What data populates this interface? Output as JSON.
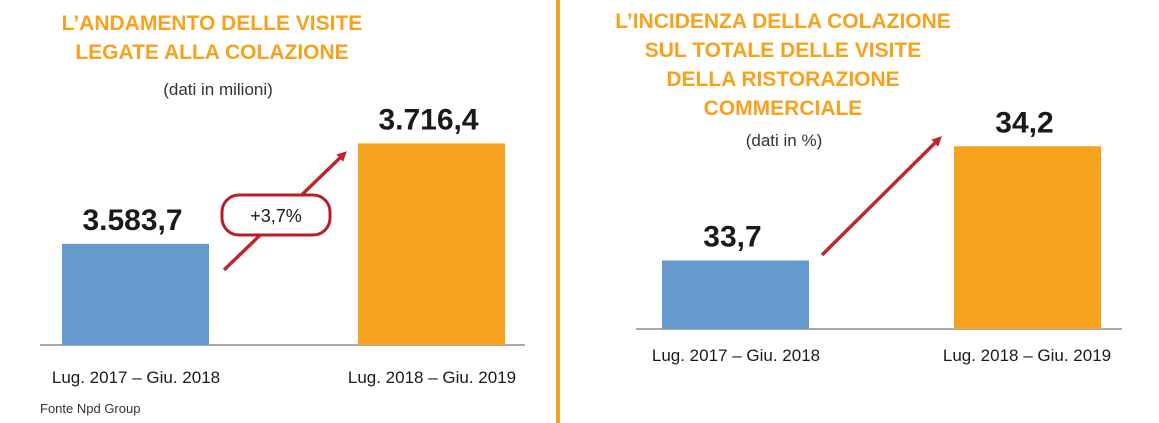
{
  "source": "Fonte Npd Group",
  "chart_data": [
    {
      "type": "bar",
      "title": [
        "L’ANDAMENTO DELLE VISITE",
        "LEGATE ALLA COLAZIONE"
      ],
      "subtitle": "(dati in milioni)",
      "categories": [
        "Lug. 2017 – Giu. 2018",
        "Lug. 2018 – Giu. 2019"
      ],
      "values": [
        3583.7,
        3716.4
      ],
      "value_labels": [
        "3.583,7",
        "3.716,4"
      ],
      "bar_colors": [
        "#6699cc",
        "#f7a21c"
      ],
      "ylim": [
        3450,
        3750
      ],
      "annotation": "+3,7%"
    },
    {
      "type": "bar",
      "title": [
        "L’INCIDENZA DELLA COLAZIONE",
        "SUL TOTALE DELLE VISITE",
        "DELLA RISTORAZIONE",
        "COMMERCIALE"
      ],
      "subtitle": "(dati in %)",
      "categories": [
        "Lug. 2017 – Giu. 2018",
        "Lug. 2018 – Giu. 2019"
      ],
      "values": [
        33.7,
        34.2
      ],
      "value_labels": [
        "33,7",
        "34,2"
      ],
      "bar_colors": [
        "#6699cc",
        "#f7a21c"
      ],
      "ylim": [
        33.4,
        34.42
      ]
    }
  ],
  "colors": {
    "accent": "#f7a21c",
    "blue": "#6699cc",
    "arrow": "#c0272d",
    "axis": "#777777"
  }
}
